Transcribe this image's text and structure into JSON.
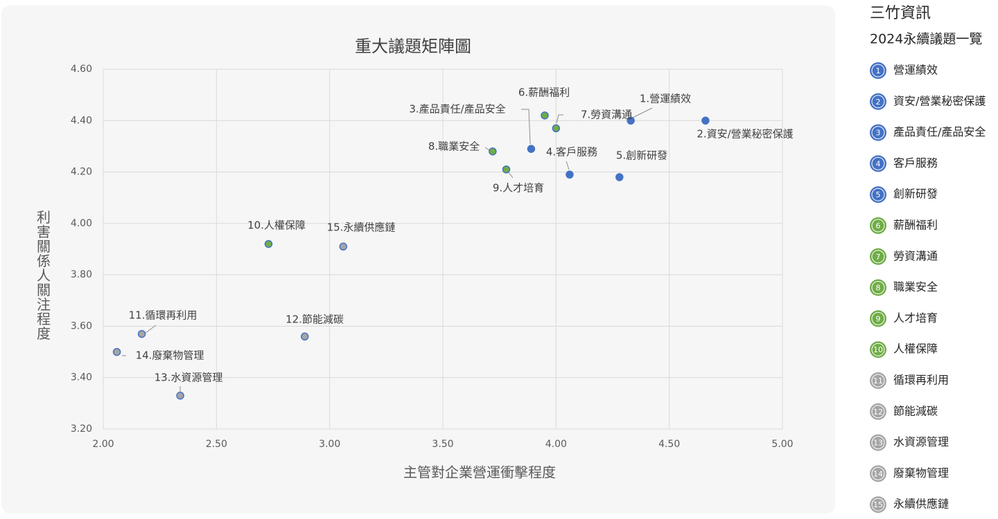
{
  "chart_data": {
    "type": "scatter",
    "title": "重大議題矩陣圖",
    "x_label": "主管對企業營運衝擊程度",
    "y_label": "利害關係人關注程度",
    "brand": "三竹資訊",
    "legend_title": "2024永續議題一覽",
    "xlim": [
      2,
      5
    ],
    "ylim": [
      3.2,
      4.6
    ],
    "grid": true,
    "xticks": [
      {
        "value": 2,
        "label": "2.00"
      },
      {
        "value": 2.5,
        "label": "2.50"
      },
      {
        "value": 3,
        "label": "3.00"
      },
      {
        "value": 3.5,
        "label": "3.50"
      },
      {
        "value": 4,
        "label": "4.00"
      },
      {
        "value": 4.5,
        "label": "4.50"
      },
      {
        "value": 5,
        "label": "5.00"
      }
    ],
    "yticks": [
      {
        "value": 3.2,
        "label": "3.20"
      },
      {
        "value": 3.4,
        "label": "3.40"
      },
      {
        "value": 3.6,
        "label": "3.60"
      },
      {
        "value": 3.8,
        "label": "3.80"
      },
      {
        "value": 4,
        "label": "4.00"
      },
      {
        "value": 4.2,
        "label": "4.20"
      },
      {
        "value": 4.4,
        "label": "4.40"
      },
      {
        "value": 4.6,
        "label": "4.60"
      }
    ],
    "series": [
      {
        "number": 1,
        "name": "營運績效",
        "label": "1.營運績效",
        "color": "#4472c4",
        "x": [
          4.33
        ],
        "values": [
          4.4
        ]
      },
      {
        "number": 2,
        "name": "資安/營業秘密保護",
        "label": "2.資安/營業秘密保護",
        "color": "#4472c4",
        "x": [
          4.66
        ],
        "values": [
          4.4
        ]
      },
      {
        "number": 3,
        "name": "產品責任/產品安全",
        "label": "3.產品責任/產品安全",
        "color": "#4472c4",
        "x": [
          3.89
        ],
        "values": [
          4.29
        ]
      },
      {
        "number": 4,
        "name": "客戶服務",
        "label": "4.客戶服務",
        "color": "#4472c4",
        "x": [
          4.06
        ],
        "values": [
          4.19
        ]
      },
      {
        "number": 5,
        "name": "創新研發",
        "label": "5.創新研發",
        "color": "#4472c4",
        "x": [
          4.28
        ],
        "values": [
          4.18
        ]
      },
      {
        "number": 6,
        "name": "薪酬福利",
        "label": "6.薪酬福利",
        "color": "#70ad47",
        "x": [
          3.95
        ],
        "values": [
          4.42
        ]
      },
      {
        "number": 7,
        "name": "勞資溝通",
        "label": "7.勞資溝通",
        "color": "#70ad47",
        "x": [
          4.0
        ],
        "values": [
          4.37
        ]
      },
      {
        "number": 8,
        "name": "職業安全",
        "label": "8.職業安全",
        "color": "#70ad47",
        "x": [
          3.72
        ],
        "values": [
          4.28
        ]
      },
      {
        "number": 9,
        "name": "人才培育",
        "label": "9.人才培育",
        "color": "#70ad47",
        "x": [
          3.78
        ],
        "values": [
          4.21
        ]
      },
      {
        "number": 10,
        "name": "人權保障",
        "label": "10.人權保障",
        "color": "#70ad47",
        "x": [
          2.73
        ],
        "values": [
          3.92
        ]
      },
      {
        "number": 11,
        "name": "循環再利用",
        "label": "11.循環再利用",
        "color": "#a5a5a5",
        "x": [
          2.17
        ],
        "values": [
          3.57
        ]
      },
      {
        "number": 12,
        "name": "節能減碳",
        "label": "12.節能減碳",
        "color": "#a5a5a5",
        "x": [
          2.89
        ],
        "values": [
          3.56
        ]
      },
      {
        "number": 13,
        "name": "水資源管理",
        "label": "13.水資源管理",
        "color": "#a5a5a5",
        "x": [
          2.34
        ],
        "values": [
          3.33
        ]
      },
      {
        "number": 14,
        "name": "廢棄物管理",
        "label": "14.廢棄物管理",
        "color": "#a5a5a5",
        "x": [
          2.06
        ],
        "values": [
          3.5
        ]
      },
      {
        "number": 15,
        "name": "永續供應鏈",
        "label": "15.永續供應鏈",
        "color": "#a5a5a5",
        "x": [
          3.06
        ],
        "values": [
          3.91
        ]
      }
    ]
  }
}
